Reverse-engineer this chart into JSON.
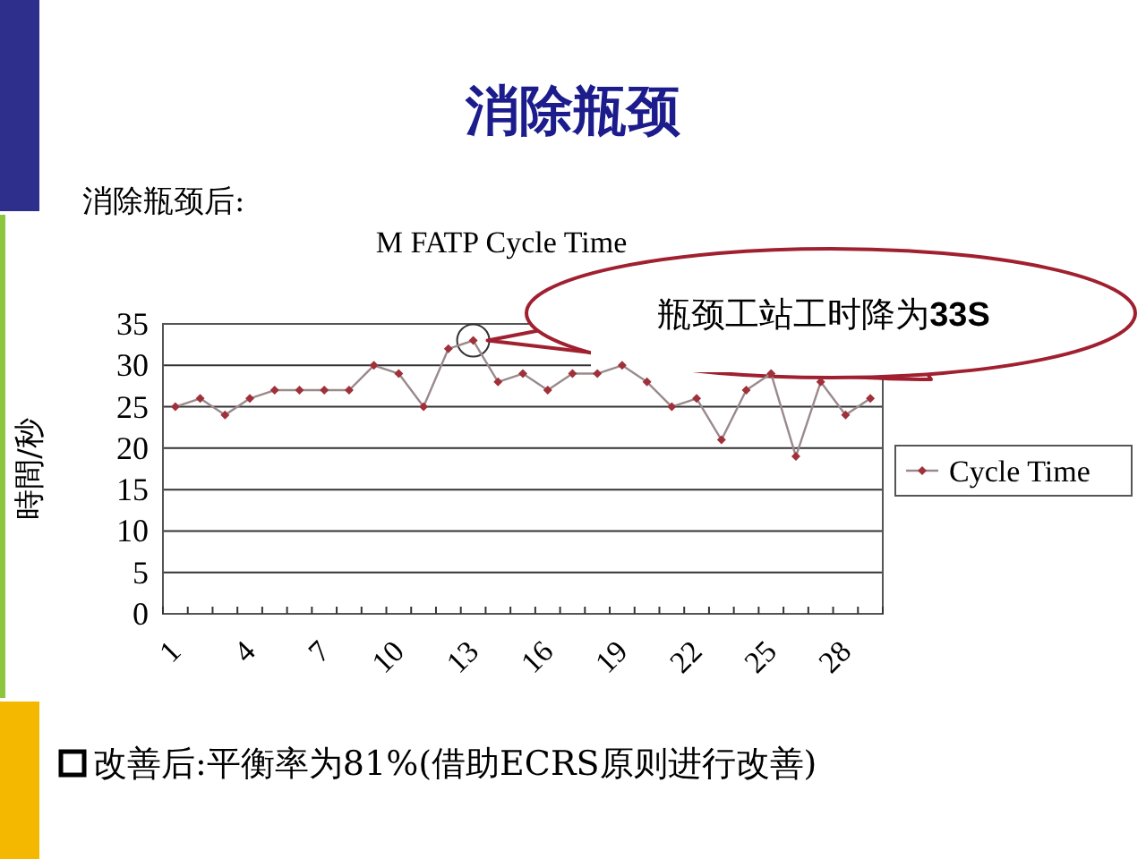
{
  "chart_data": {
    "type": "line",
    "title": "消除瓶颈",
    "subtitle": "消除瓶颈后:",
    "ylabel": "時間/秒",
    "categories": [
      "1",
      null,
      null,
      "4",
      null,
      null,
      "7",
      null,
      null,
      "10",
      null,
      null,
      "13",
      null,
      null,
      "16",
      null,
      null,
      "19",
      null,
      null,
      "22",
      null,
      null,
      "25",
      null,
      null,
      "28",
      null
    ],
    "series": [
      {
        "name": "Cycle Time",
        "color": "#a0303a",
        "values": [
          25,
          26,
          24,
          26,
          27,
          27,
          27,
          27,
          30,
          29,
          25,
          32,
          33,
          28,
          29,
          27,
          29,
          29,
          30,
          28,
          25,
          26,
          21,
          27,
          29,
          19,
          28,
          24,
          26
        ]
      }
    ],
    "ylim": [
      0,
      35
    ],
    "yticks": [
      0,
      5,
      10,
      15,
      20,
      25,
      30,
      35
    ],
    "grid": "y",
    "legend": "right",
    "marker": "diamond",
    "line_style": "solid",
    "annotations": [
      "M FATP Cycle Time",
      {
        "text": "瓶颈工站工时降为**33S**",
        "x": "13",
        "y": 33
      },
      "改善后:平衡率为81%(借助ECRS原则进行改善)"
    ]
  }
}
